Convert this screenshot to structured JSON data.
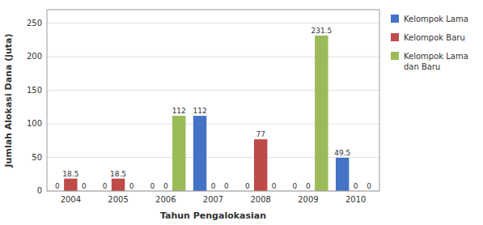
{
  "chart_data": {
    "type": "bar",
    "categories": [
      "2004",
      "2005",
      "2006",
      "2007",
      "2008",
      "2009",
      "2010"
    ],
    "series": [
      {
        "name": "Kelompok Lama",
        "color": "#4472C4",
        "values": [
          0,
          0,
          0,
          112,
          0,
          0,
          49.5
        ]
      },
      {
        "name": "Kelompok Baru",
        "color": "#BE4B48",
        "values": [
          18.5,
          18.5,
          0,
          0,
          77,
          0,
          0
        ]
      },
      {
        "name": "Kelompok Lama\ndan Baru",
        "color": "#9BBB59",
        "values": [
          0,
          0,
          112,
          0,
          0,
          231.5,
          0
        ]
      }
    ],
    "xlabel": "Tahun Pengalokasian",
    "ylabel": "Jumlah Alokasi Dana (juta)",
    "ylim": [
      0,
      270
    ],
    "yticks": [
      0,
      50,
      100,
      150,
      200,
      250
    ],
    "grid": true,
    "legend": "right",
    "data_labels": true
  }
}
